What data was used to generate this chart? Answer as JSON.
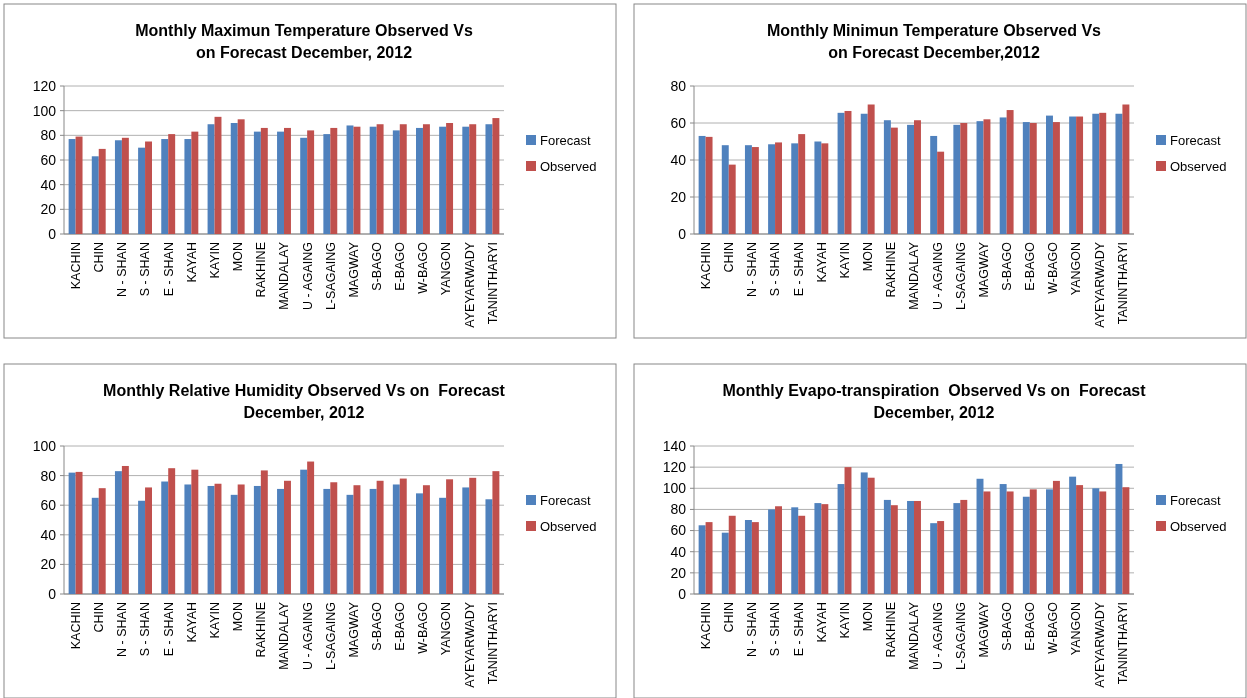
{
  "chart_data": [
    {
      "type": "bar",
      "title": "Monthly Maximun Temperature Observed Vs\non Forecast December, 2012",
      "categories": [
        "KACHIN",
        "CHIN",
        "N - SHAN",
        "S - SHAN",
        "E - SHAN",
        "KAYAH",
        "KAYIN",
        "MON",
        "RAKHINE",
        "MANDALAY",
        "U - AGAING",
        "L-SAGAING",
        "MAGWAY",
        "S-BAGO",
        "E-BAGO",
        "W-BAGO",
        "YANGON",
        "AYEYARWADY",
        "TANINTHARYI"
      ],
      "series": [
        {
          "name": "Forecast",
          "color": "#4f81bd",
          "values": [
            77,
            63,
            76,
            70,
            77,
            77,
            89,
            90,
            83,
            83,
            78,
            81,
            88,
            87,
            84,
            86,
            87,
            87,
            89
          ]
        },
        {
          "name": "Observed",
          "color": "#c0504d",
          "values": [
            79,
            69,
            78,
            75,
            81,
            83,
            95,
            93,
            86,
            86,
            84,
            86,
            87,
            89,
            89,
            89,
            90,
            89,
            94
          ]
        }
      ],
      "ylim": [
        0,
        120
      ],
      "yticks": [
        0,
        20,
        40,
        60,
        80,
        100,
        120
      ],
      "grid": "y",
      "legend": "right"
    },
    {
      "type": "bar",
      "title": "Monthly Minimun Temperature Observed Vs\non Forecast December,2012",
      "categories": [
        "KACHIN",
        "CHIN",
        "N - SHAN",
        "S - SHAN",
        "E - SHAN",
        "KAYAH",
        "KAYIN",
        "MON",
        "RAKHINE",
        "MANDALAY",
        "U - AGAING",
        "L-SAGAING",
        "MAGWAY",
        "S-BAGO",
        "E-BAGO",
        "W-BAGO",
        "YANGON",
        "AYEYARWADY",
        "TANINTHARYI"
      ],
      "series": [
        {
          "name": "Forecast",
          "color": "#4f81bd",
          "values": [
            53,
            48,
            48,
            48.5,
            49,
            50,
            65.5,
            65,
            61.5,
            59,
            53,
            59,
            61,
            63,
            60.5,
            64,
            63.5,
            65,
            65
          ]
        },
        {
          "name": "Observed",
          "color": "#c0504d",
          "values": [
            52.5,
            37.5,
            47,
            49.5,
            54,
            49,
            66.5,
            70,
            57.5,
            61.5,
            44.5,
            60,
            62,
            67,
            60,
            60.5,
            63.5,
            65.5,
            70
          ]
        }
      ],
      "ylim": [
        0,
        80
      ],
      "yticks": [
        0,
        20,
        40,
        60,
        80
      ],
      "grid": "y",
      "legend": "right"
    },
    {
      "type": "bar",
      "title": "Monthly Relative Humidity Observed Vs on  Forecast\nDecember, 2012",
      "categories": [
        "KACHIN",
        "CHIN",
        "N - SHAN",
        "S - SHAN",
        "E - SHAN",
        "KAYAH",
        "KAYIN",
        "MON",
        "RAKHINE",
        "MANDALAY",
        "U - AGAING",
        "L-SAGAING",
        "MAGWAY",
        "S-BAGO",
        "E-BAGO",
        "W-BAGO",
        "YANGON",
        "AYEYARWADY",
        "TANINTHARYI"
      ],
      "series": [
        {
          "name": "Forecast",
          "color": "#4f81bd",
          "values": [
            82,
            65,
            83,
            63,
            76,
            74,
            73,
            67,
            73,
            71,
            84,
            71,
            67,
            71,
            74,
            68,
            65,
            72,
            64
          ]
        },
        {
          "name": "Observed",
          "color": "#c0504d",
          "values": [
            82.5,
            71.5,
            86.5,
            72,
            85,
            84,
            74.5,
            74,
            83.5,
            76.5,
            89.5,
            75.5,
            73.5,
            76.5,
            78,
            73.5,
            77.5,
            78.5,
            83
          ]
        }
      ],
      "ylim": [
        0,
        100
      ],
      "yticks": [
        0,
        20,
        40,
        60,
        80,
        100
      ],
      "grid": "y",
      "legend": "right"
    },
    {
      "type": "bar",
      "title": "Monthly Evapo-transpiration  Observed Vs on  Forecast\nDecember, 2012",
      "categories": [
        "KACHIN",
        "CHIN",
        "N - SHAN",
        "S - SHAN",
        "E - SHAN",
        "KAYAH",
        "KAYIN",
        "MON",
        "RAKHINE",
        "MANDALAY",
        "U - AGAING",
        "L-SAGAING",
        "MAGWAY",
        "S-BAGO",
        "E-BAGO",
        "W-BAGO",
        "YANGON",
        "AYEYARWADY",
        "TANINTHARYI"
      ],
      "series": [
        {
          "name": "Forecast",
          "color": "#4f81bd",
          "values": [
            65,
            58,
            70,
            80,
            82,
            86,
            104,
            115,
            89,
            88,
            67,
            86,
            109,
            104,
            92,
            99,
            111,
            100,
            123
          ]
        },
        {
          "name": "Observed",
          "color": "#c0504d",
          "values": [
            68,
            74,
            68,
            83,
            74,
            85,
            120,
            110,
            84,
            88,
            69,
            89,
            97,
            97,
            99,
            107,
            103,
            97,
            101
          ]
        }
      ],
      "ylim": [
        0,
        140
      ],
      "yticks": [
        0,
        20,
        40,
        60,
        80,
        100,
        120,
        140
      ],
      "grid": "y",
      "legend": "right"
    }
  ]
}
